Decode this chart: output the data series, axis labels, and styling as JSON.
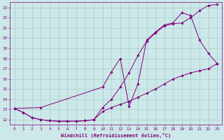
{
  "xlabel": "Windchill (Refroidissement éolien,°C)",
  "bg_color": "#cce8e8",
  "line_color": "#800080",
  "grid_color": "#aacccc",
  "xlim": [
    -0.5,
    23.5
  ],
  "ylim": [
    11.5,
    23.5
  ],
  "xticks": [
    0,
    1,
    2,
    3,
    4,
    5,
    6,
    7,
    8,
    9,
    10,
    11,
    12,
    13,
    14,
    15,
    16,
    17,
    18,
    19,
    20,
    21,
    22,
    23
  ],
  "yticks": [
    12,
    13,
    14,
    15,
    16,
    17,
    18,
    19,
    20,
    21,
    22,
    23
  ],
  "curve1_x": [
    0,
    1,
    2,
    3,
    4,
    5,
    6,
    7,
    8,
    9,
    10,
    11,
    12,
    13,
    14,
    15,
    16,
    17,
    18,
    19,
    20,
    21,
    22,
    23
  ],
  "curve1_y": [
    13.1,
    12.7,
    12.2,
    12.0,
    11.9,
    11.85,
    11.85,
    11.85,
    11.9,
    12.0,
    13.2,
    14.0,
    15.2,
    16.6,
    18.3,
    19.7,
    20.5,
    21.2,
    21.4,
    21.5,
    22.0,
    22.7,
    23.2,
    23.3
  ],
  "curve2_x": [
    0,
    3,
    10,
    11,
    12,
    13,
    14,
    15,
    16,
    17,
    18,
    19,
    20,
    21,
    22,
    23
  ],
  "curve2_y": [
    13.1,
    13.2,
    15.2,
    16.7,
    18.0,
    13.3,
    15.5,
    19.8,
    20.6,
    21.3,
    21.5,
    22.5,
    22.2,
    19.8,
    18.5,
    17.5
  ],
  "curve3_x": [
    0,
    1,
    2,
    3,
    4,
    5,
    6,
    7,
    8,
    9,
    10,
    11,
    12,
    13,
    14,
    15,
    16,
    17,
    18,
    19,
    20,
    21,
    22,
    23
  ],
  "curve3_y": [
    13.1,
    12.7,
    12.2,
    12.0,
    11.9,
    11.85,
    11.85,
    11.85,
    11.9,
    12.0,
    12.8,
    13.2,
    13.5,
    13.8,
    14.2,
    14.6,
    15.0,
    15.5,
    16.0,
    16.3,
    16.6,
    16.8,
    17.0,
    17.5
  ]
}
